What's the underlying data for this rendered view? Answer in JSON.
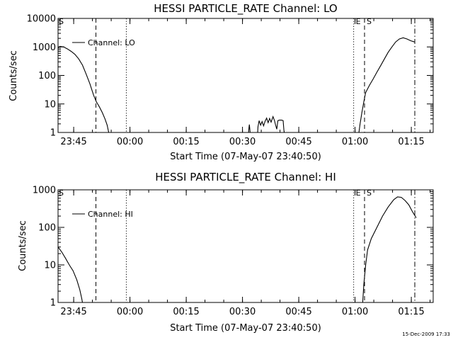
{
  "chart_data": [
    {
      "type": "line",
      "title": "HESSI PARTICLE_RATE Channel: LO",
      "xlabel": "Start Time (07-May-07 23:40:50)",
      "ylabel": "Counts/sec",
      "ylog": true,
      "ylim": [
        1,
        10000
      ],
      "xlim_min_from_start": [
        0,
        100
      ],
      "yticks": [
        "1",
        "10",
        "100",
        "1000",
        "10000"
      ],
      "xticks": [
        {
          "min": 4.17,
          "label": "23:45"
        },
        {
          "min": 19.17,
          "label": "00:00"
        },
        {
          "min": 34.17,
          "label": "00:15"
        },
        {
          "min": 49.17,
          "label": "00:30"
        },
        {
          "min": 64.17,
          "label": "00:45"
        },
        {
          "min": 79.17,
          "label": "01:00"
        },
        {
          "min": 94.17,
          "label": "01:15"
        }
      ],
      "legend": {
        "entry": "Channel: LO",
        "placement": "top-left"
      },
      "markers": [
        {
          "label": "S",
          "min": 0,
          "style": "none"
        },
        {
          "label": "",
          "min": 10.1,
          "style": "dashed"
        },
        {
          "label": "",
          "min": 18.2,
          "style": "dotted"
        },
        {
          "label": "E",
          "min": 78.8,
          "style": "dotted"
        },
        {
          "label": "S",
          "min": 81.7,
          "style": "dashed"
        },
        {
          "label": "",
          "min": 95.1,
          "style": "dashdot"
        }
      ],
      "series": [
        {
          "segments": [
            [
              [
                0.0,
                950
              ],
              [
                0.5,
                1050
              ],
              [
                1.5,
                1000
              ],
              [
                2.5,
                850
              ],
              [
                3.5,
                700
              ],
              [
                4.5,
                550
              ],
              [
                5.5,
                380
              ],
              [
                6.5,
                230
              ],
              [
                7.5,
                110
              ],
              [
                8.5,
                50
              ],
              [
                9.5,
                20
              ],
              [
                10.2,
                12
              ],
              [
                11.0,
                8
              ],
              [
                11.8,
                5
              ],
              [
                12.5,
                3
              ],
              [
                13.1,
                1.8
              ],
              [
                13.5,
                1
              ]
            ],
            [
              [
                50.8,
                1
              ],
              [
                50.9,
                1.5
              ],
              [
                51.0,
                1.9
              ],
              [
                51.2,
                1
              ]
            ],
            [
              [
                53.2,
                1
              ],
              [
                53.3,
                1.6
              ],
              [
                53.6,
                2.6
              ],
              [
                54.0,
                1.8
              ],
              [
                54.4,
                2.4
              ],
              [
                54.8,
                1.7
              ],
              [
                55.2,
                2.5
              ],
              [
                55.6,
                3.2
              ],
              [
                56.0,
                2.2
              ],
              [
                56.4,
                3.1
              ],
              [
                56.8,
                2.3
              ],
              [
                57.3,
                3.6
              ],
              [
                57.7,
                2.6
              ],
              [
                58.0,
                1.8
              ],
              [
                58.3,
                1.3
              ],
              [
                58.6,
                2.6
              ],
              [
                59.0,
                2.7
              ],
              [
                59.6,
                2.7
              ],
              [
                60.0,
                2.6
              ],
              [
                60.2,
                1.2
              ],
              [
                60.3,
                1
              ]
            ],
            [
              [
                80.2,
                1
              ],
              [
                80.5,
                2
              ],
              [
                81.0,
                5
              ],
              [
                81.5,
                12
              ],
              [
                82.0,
                25
              ],
              [
                83.0,
                45
              ],
              [
                84.0,
                75
              ],
              [
                85.0,
                130
              ],
              [
                86.0,
                220
              ],
              [
                87.0,
                380
              ],
              [
                88.0,
                650
              ],
              [
                89.0,
                1000
              ],
              [
                90.0,
                1500
              ],
              [
                91.0,
                1900
              ],
              [
                92.0,
                2100
              ],
              [
                93.0,
                1900
              ],
              [
                94.0,
                1650
              ],
              [
                95.0,
                1500
              ]
            ]
          ]
        }
      ]
    },
    {
      "type": "line",
      "title": "HESSI PARTICLE_RATE Channel: HI",
      "xlabel": "Start Time (07-May-07 23:40:50)",
      "ylabel": "Counts/sec",
      "ylog": true,
      "ylim": [
        1,
        1000
      ],
      "xlim_min_from_start": [
        0,
        100
      ],
      "yticks": [
        "1",
        "10",
        "100",
        "1000"
      ],
      "xticks": [
        {
          "min": 4.17,
          "label": "23:45"
        },
        {
          "min": 19.17,
          "label": "00:00"
        },
        {
          "min": 34.17,
          "label": "00:15"
        },
        {
          "min": 49.17,
          "label": "00:30"
        },
        {
          "min": 64.17,
          "label": "00:45"
        },
        {
          "min": 79.17,
          "label": "01:00"
        },
        {
          "min": 94.17,
          "label": "01:15"
        }
      ],
      "legend": {
        "entry": "Channel: HI",
        "placement": "top-left"
      },
      "markers": [
        {
          "label": "S",
          "min": 0,
          "style": "none"
        },
        {
          "label": "",
          "min": 10.1,
          "style": "dashed"
        },
        {
          "label": "",
          "min": 18.2,
          "style": "dotted"
        },
        {
          "label": "E",
          "min": 78.8,
          "style": "dotted"
        },
        {
          "label": "S",
          "min": 81.7,
          "style": "dashed"
        },
        {
          "label": "",
          "min": 95.1,
          "style": "dashdot"
        }
      ],
      "series": [
        {
          "segments": [
            [
              [
                0.0,
                30
              ],
              [
                1.0,
                22
              ],
              [
                2.0,
                15
              ],
              [
                3.0,
                10
              ],
              [
                4.0,
                7
              ],
              [
                5.0,
                4
              ],
              [
                5.8,
                2.2
              ],
              [
                6.3,
                1.3
              ],
              [
                6.5,
                1
              ]
            ],
            [
              [
                81.2,
                1
              ],
              [
                81.5,
                3
              ],
              [
                82.0,
                10
              ],
              [
                82.5,
                25
              ],
              [
                83.5,
                50
              ],
              [
                85.0,
                100
              ],
              [
                86.5,
                200
              ],
              [
                88.0,
                350
              ],
              [
                89.5,
                550
              ],
              [
                90.5,
                650
              ],
              [
                91.5,
                630
              ],
              [
                92.5,
                520
              ],
              [
                93.5,
                400
              ],
              [
                94.5,
                260
              ],
              [
                95.5,
                180
              ]
            ]
          ]
        }
      ]
    }
  ],
  "footer": {
    "timestamp": "15-Dec-2009 17:33"
  }
}
